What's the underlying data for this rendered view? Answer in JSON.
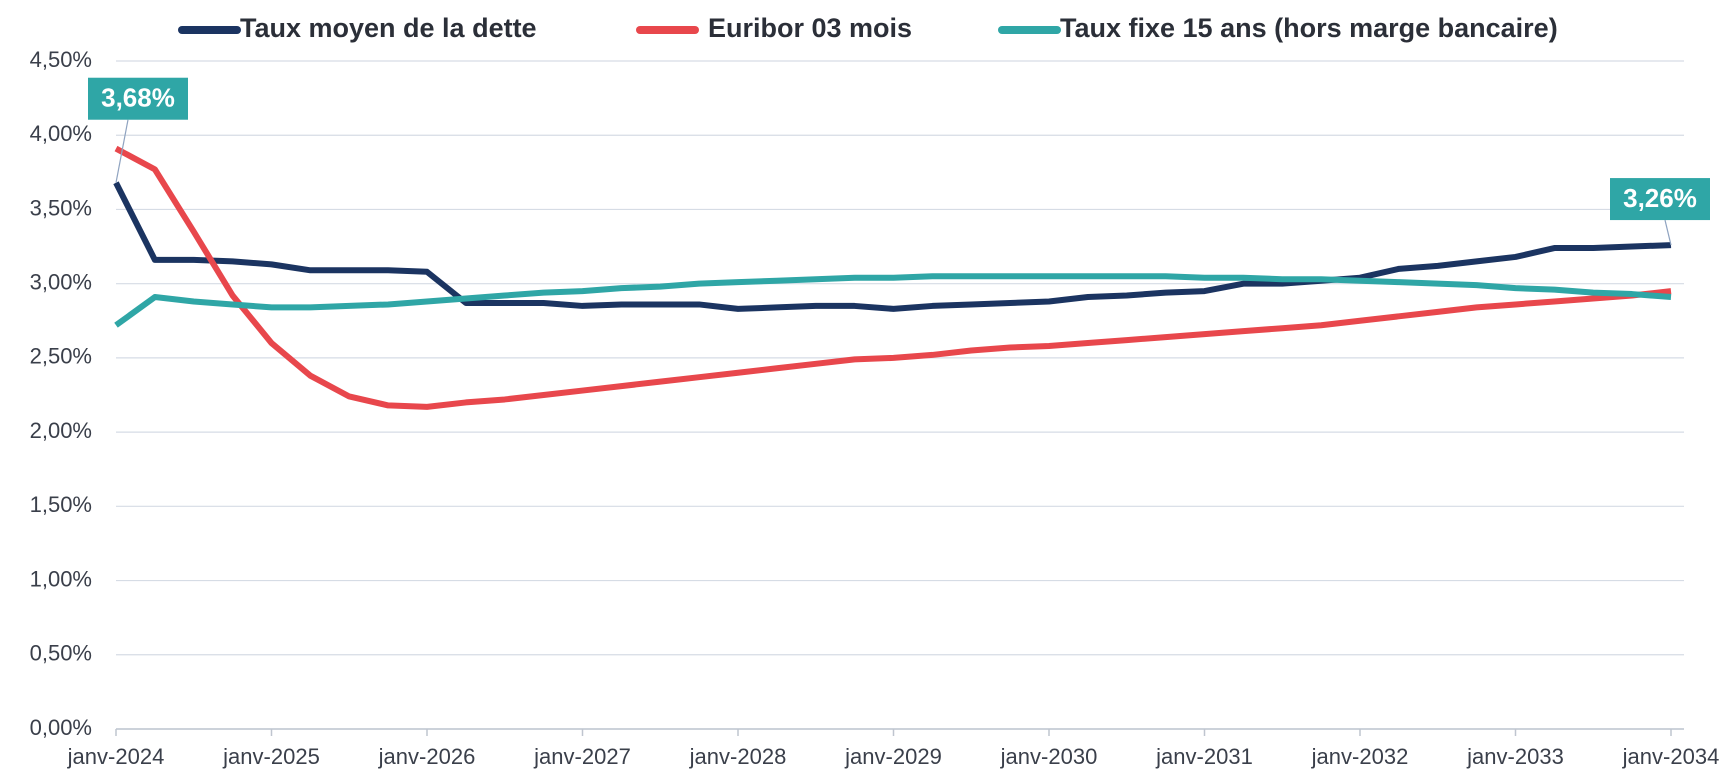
{
  "chart_data": {
    "type": "line",
    "categories": [
      "janv-2024",
      null,
      null,
      null,
      "janv-2025",
      null,
      null,
      null,
      "janv-2026",
      null,
      null,
      null,
      "janv-2027",
      null,
      null,
      null,
      "janv-2028",
      null,
      null,
      null,
      "janv-2029",
      null,
      null,
      null,
      "janv-2030",
      null,
      null,
      null,
      "janv-2031",
      null,
      null,
      null,
      "janv-2032",
      null,
      null,
      null,
      "janv-2033",
      null,
      null,
      null,
      "janv-2034"
    ],
    "series": [
      {
        "name": "Taux moyen de la dette",
        "color": "#1b3461",
        "values": [
          3.68,
          3.16,
          3.16,
          3.15,
          3.13,
          3.09,
          3.09,
          3.09,
          3.08,
          2.87,
          2.87,
          2.87,
          2.85,
          2.86,
          2.86,
          2.86,
          2.83,
          2.84,
          2.85,
          2.85,
          2.83,
          2.85,
          2.86,
          2.87,
          2.88,
          2.91,
          2.92,
          2.94,
          2.95,
          3.0,
          3.0,
          3.02,
          3.04,
          3.1,
          3.12,
          3.15,
          3.18,
          3.24,
          3.24,
          3.25,
          3.26
        ],
        "value_labels": [
          "3,68%",
          null,
          null,
          null,
          null,
          null,
          null,
          null,
          null,
          null,
          null,
          null,
          null,
          null,
          null,
          null,
          null,
          null,
          null,
          null,
          null,
          null,
          null,
          null,
          null,
          null,
          null,
          null,
          null,
          null,
          null,
          null,
          null,
          null,
          null,
          null,
          null,
          null,
          null,
          null,
          "3,26%"
        ]
      },
      {
        "name": "Euribor 03 mois",
        "color": "#e8474c",
        "values": [
          3.91,
          3.77,
          3.35,
          2.92,
          2.6,
          2.38,
          2.24,
          2.18,
          2.17,
          2.2,
          2.22,
          2.25,
          2.28,
          2.31,
          2.34,
          2.37,
          2.4,
          2.43,
          2.46,
          2.49,
          2.5,
          2.52,
          2.55,
          2.57,
          2.58,
          2.6,
          2.62,
          2.64,
          2.66,
          2.68,
          2.7,
          2.72,
          2.75,
          2.78,
          2.81,
          2.84,
          2.86,
          2.88,
          2.9,
          2.92,
          2.95
        ]
      },
      {
        "name": "Taux fixe 15 ans (hors marge bancaire)",
        "color": "#2fa6a6",
        "values": [
          2.72,
          2.91,
          2.88,
          2.86,
          2.84,
          2.84,
          2.85,
          2.86,
          2.88,
          2.9,
          2.92,
          2.94,
          2.95,
          2.97,
          2.98,
          3.0,
          3.01,
          3.02,
          3.03,
          3.04,
          3.04,
          3.05,
          3.05,
          3.05,
          3.05,
          3.05,
          3.05,
          3.05,
          3.04,
          3.04,
          3.03,
          3.03,
          3.02,
          3.01,
          3.0,
          2.99,
          2.97,
          2.96,
          2.94,
          2.93,
          2.91
        ]
      }
    ],
    "label_color": "#2fa6a6",
    "ylim": [
      0,
      4.5
    ],
    "yticks": [
      {
        "value": 0,
        "label": "0,00%"
      },
      {
        "value": 0.5,
        "label": "0,50%"
      },
      {
        "value": 1,
        "label": "1,00%"
      },
      {
        "value": 1.5,
        "label": "1,50%"
      },
      {
        "value": 2,
        "label": "2,00%"
      },
      {
        "value": 2.5,
        "label": "2,50%"
      },
      {
        "value": 3,
        "label": "3,00%"
      },
      {
        "value": 3.5,
        "label": "3,50%"
      },
      {
        "value": 4,
        "label": "4,00%"
      },
      {
        "value": 4.5,
        "label": "4,50%"
      }
    ],
    "grid": true,
    "legend": "top"
  }
}
